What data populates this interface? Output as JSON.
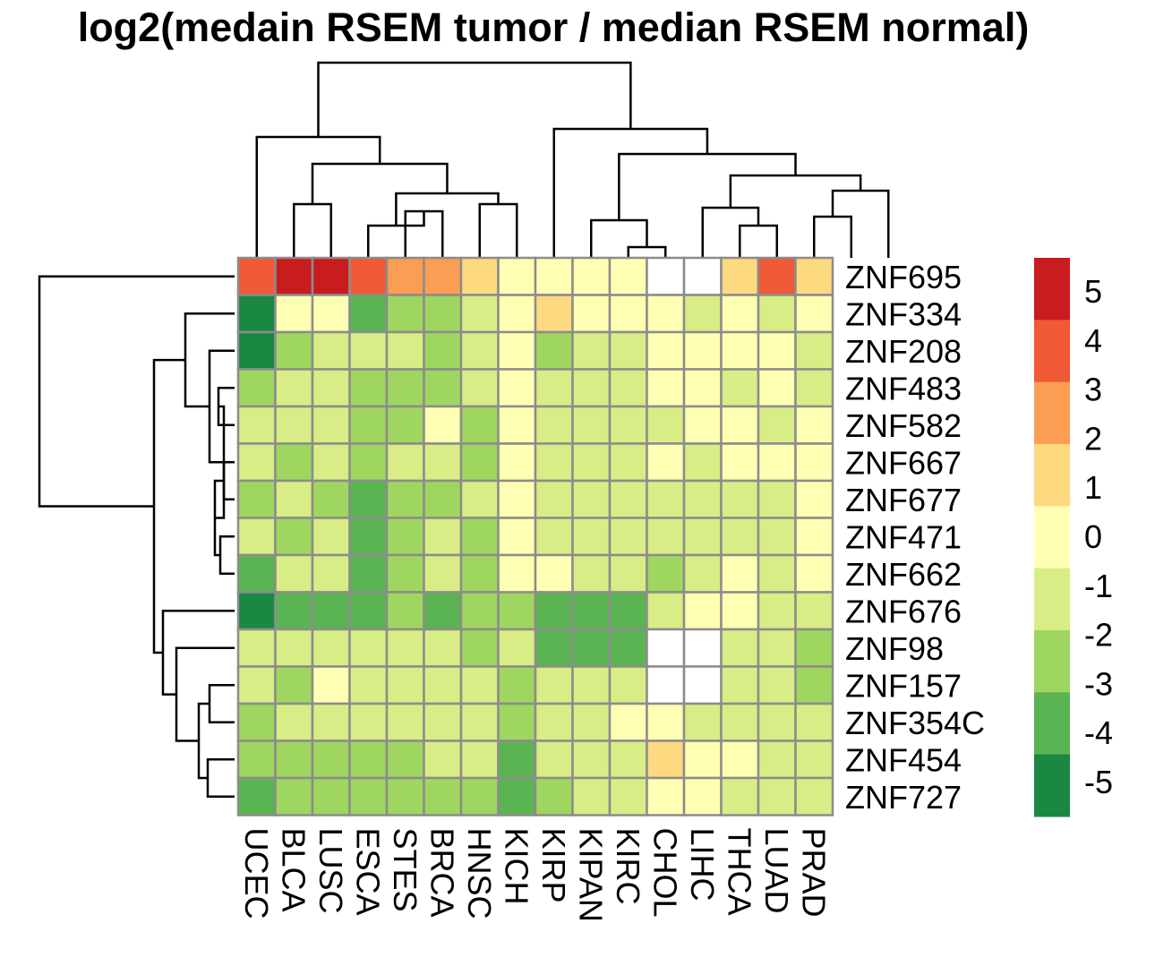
{
  "chart_data": {
    "type": "heatmap",
    "title": "log2(medain RSEM tumor / median RSEM normal)",
    "columns": [
      "UCEC",
      "BLCA",
      "LUSC",
      "ESCA",
      "STES",
      "BRCA",
      "HNSC",
      "KICH",
      "KIRP",
      "KIPAN",
      "KIRC",
      "CHOL",
      "LIHC",
      "THCA",
      "LUAD",
      "PRAD"
    ],
    "rows": [
      "ZNF695",
      "ZNF334",
      "ZNF208",
      "ZNF483",
      "ZNF582",
      "ZNF667",
      "ZNF677",
      "ZNF471",
      "ZNF662",
      "ZNF676",
      "ZNF98",
      "ZNF157",
      "ZNF354C",
      "ZNF454",
      "ZNF727"
    ],
    "values": [
      [
        4,
        5,
        5,
        4,
        3,
        3,
        1,
        0,
        0,
        0,
        0,
        null,
        null,
        1,
        4,
        1
      ],
      [
        -5,
        0,
        0,
        -3,
        -2,
        -2,
        -1,
        0,
        1,
        0,
        0,
        0,
        -1,
        0,
        -1,
        0
      ],
      [
        -5,
        -2,
        -1,
        -1,
        -1,
        -2,
        -1,
        0,
        -2,
        -1,
        -1,
        0,
        0,
        0,
        0,
        -1
      ],
      [
        -2,
        -1,
        -1,
        -2,
        -2,
        -2,
        -1,
        0,
        -1,
        -1,
        -1,
        0,
        0,
        -1,
        0,
        -1
      ],
      [
        -1,
        -1,
        -1,
        -2,
        -2,
        0,
        -2,
        0,
        -1,
        -1,
        -1,
        -1,
        0,
        0,
        -1,
        0
      ],
      [
        -1,
        -2,
        -1,
        -2,
        -1,
        -1,
        -2,
        0,
        -1,
        -1,
        -1,
        0,
        -1,
        0,
        0,
        0
      ],
      [
        -2,
        -1,
        -2,
        -3,
        -2,
        -2,
        -1,
        0,
        -1,
        -1,
        -1,
        -1,
        -1,
        -1,
        -1,
        0
      ],
      [
        -1,
        -2,
        -1,
        -3,
        -2,
        -1,
        -2,
        0,
        -1,
        -1,
        -1,
        -1,
        -1,
        -1,
        -1,
        0
      ],
      [
        -3,
        -1,
        -1,
        -3,
        -2,
        -1,
        -2,
        0,
        0,
        -1,
        -1,
        -2,
        -1,
        0,
        -1,
        0
      ],
      [
        -5,
        -3,
        -3,
        -3,
        -2,
        -3,
        -2,
        -2,
        -3,
        -3,
        -3,
        -1,
        0,
        0,
        -1,
        -1
      ],
      [
        -1,
        -1,
        -1,
        -1,
        -1,
        -1,
        -2,
        -1,
        -3,
        -3,
        -3,
        null,
        null,
        -1,
        -1,
        -2
      ],
      [
        -1,
        -2,
        0,
        -1,
        -1,
        -1,
        -1,
        -2,
        -1,
        -1,
        -1,
        null,
        null,
        -1,
        -1,
        -2
      ],
      [
        -2,
        -1,
        -1,
        -1,
        -1,
        -1,
        -1,
        -2,
        -1,
        -1,
        0,
        0,
        -1,
        -1,
        -1,
        -1
      ],
      [
        -2,
        -2,
        -2,
        -2,
        -2,
        -1,
        -1,
        -3,
        -1,
        -1,
        -1,
        1,
        0,
        0,
        -1,
        -1
      ],
      [
        -3,
        -2,
        -2,
        -2,
        -2,
        -2,
        -2,
        -3,
        -2,
        -1,
        -1,
        0,
        0,
        -1,
        -1,
        -1
      ]
    ],
    "legend": {
      "ticks": [
        "5",
        "4",
        "3",
        "2",
        "1",
        "0",
        "-1",
        "-2",
        "-3",
        "-4",
        "-5"
      ],
      "bins": [
        {
          "value": 5,
          "color": "#c81c1e"
        },
        {
          "value": 4,
          "color": "#f05a36"
        },
        {
          "value": 3,
          "color": "#fb9d53"
        },
        {
          "value": 1,
          "color": "#fdd980"
        },
        {
          "value": 0,
          "color": "#ffffb3"
        },
        {
          "value": -1,
          "color": "#d8ed85"
        },
        {
          "value": -2,
          "color": "#9fd660"
        },
        {
          "value": -3,
          "color": "#5bb452"
        },
        {
          "value": -5,
          "color": "#1a8742"
        }
      ]
    },
    "missing_color": "#ffffff",
    "grid_color": "#8c8c8c",
    "legend_placement": "right",
    "dendrograms": [
      "top",
      "left"
    ]
  }
}
